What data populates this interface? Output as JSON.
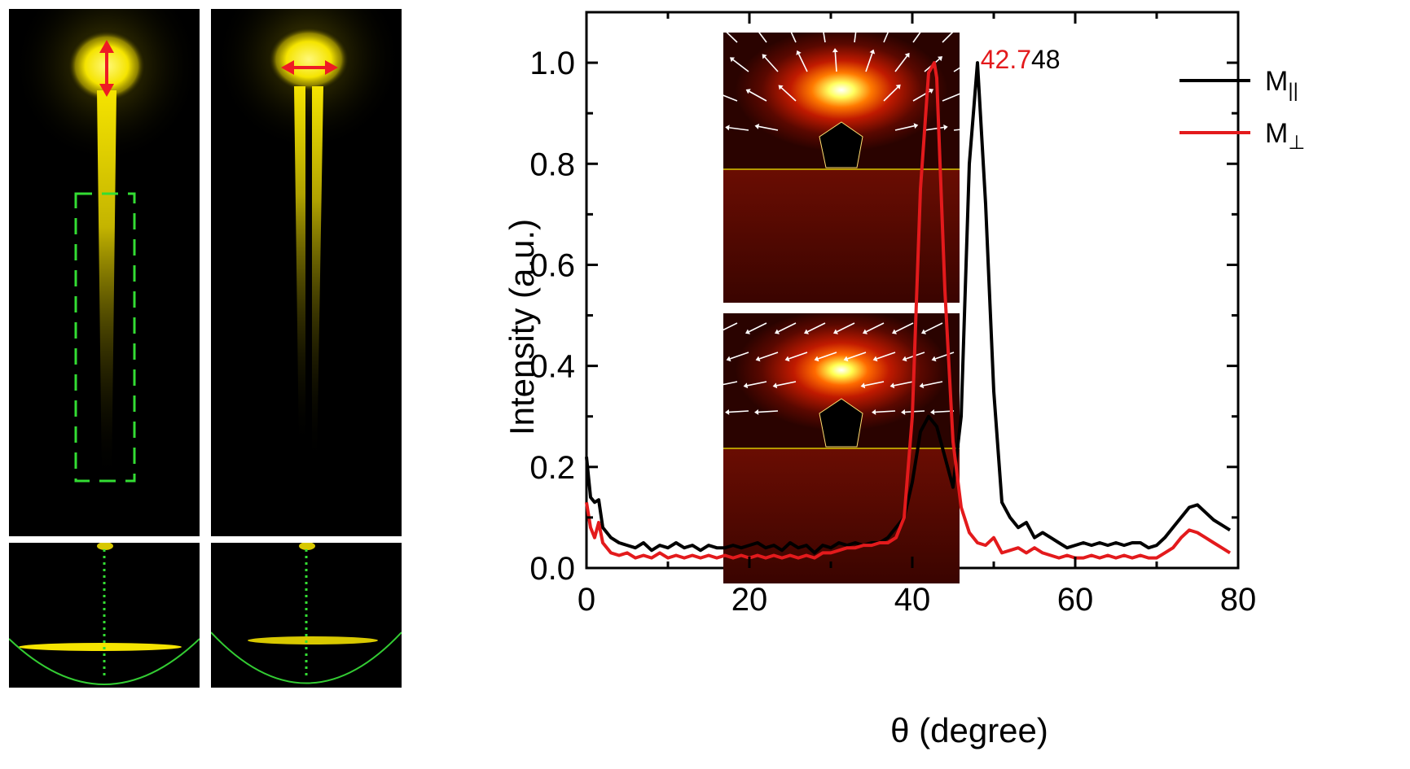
{
  "images": {
    "left_top": {
      "description": "",
      "polarization_arrow": "vertical"
    },
    "right_top": {
      "polarization_arrow": "horizontal"
    }
  },
  "colors": {
    "m_parallel": "#000000",
    "m_perp": "#e31a1c",
    "glow": "#f5e400",
    "box_dashed": "#33dd33",
    "arrow_red": "#ee1b24"
  },
  "chart_data": {
    "type": "line",
    "xlabel": "θ (degree)",
    "ylabel": "Intensity (a.u.)",
    "xlim": [
      0,
      80
    ],
    "ylim": [
      0,
      1.1
    ],
    "xticks": [
      "0",
      "20",
      "40",
      "60",
      "80"
    ],
    "yticks": [
      "0.0",
      "0.2",
      "0.4",
      "0.6",
      "0.8",
      "1.0"
    ],
    "legend_position": "top-right",
    "annotations": [
      {
        "text": "42.7",
        "color": "#e31a1c"
      },
      {
        "text": "48",
        "color": "#000000"
      }
    ],
    "series": [
      {
        "name_main": "M",
        "name_sub": "||",
        "color": "#000000",
        "x": [
          0,
          0.5,
          1,
          1.5,
          2,
          3,
          4,
          5,
          6,
          7,
          8,
          9,
          10,
          11,
          12,
          13,
          14,
          15,
          16,
          17,
          18,
          19,
          20,
          21,
          22,
          23,
          24,
          25,
          26,
          27,
          28,
          29,
          30,
          31,
          32,
          33,
          34,
          35,
          36,
          37,
          38,
          39,
          40,
          41,
          42,
          43,
          44,
          45,
          46,
          47,
          48,
          49,
          50,
          51,
          52,
          53,
          54,
          55,
          56,
          57,
          58,
          59,
          60,
          61,
          62,
          63,
          64,
          65,
          66,
          67,
          68,
          69,
          70,
          71,
          72,
          73,
          74,
          75,
          76,
          77,
          78,
          79
        ],
        "y": [
          0.22,
          0.14,
          0.13,
          0.135,
          0.08,
          0.06,
          0.05,
          0.045,
          0.04,
          0.05,
          0.035,
          0.045,
          0.04,
          0.05,
          0.04,
          0.045,
          0.035,
          0.045,
          0.04,
          0.04,
          0.045,
          0.04,
          0.045,
          0.05,
          0.04,
          0.045,
          0.035,
          0.05,
          0.04,
          0.045,
          0.03,
          0.045,
          0.04,
          0.05,
          0.045,
          0.05,
          0.045,
          0.05,
          0.05,
          0.06,
          0.08,
          0.1,
          0.17,
          0.27,
          0.3,
          0.28,
          0.22,
          0.16,
          0.3,
          0.8,
          1.0,
          0.72,
          0.35,
          0.13,
          0.1,
          0.08,
          0.09,
          0.06,
          0.07,
          0.06,
          0.05,
          0.04,
          0.045,
          0.05,
          0.045,
          0.05,
          0.045,
          0.05,
          0.045,
          0.05,
          0.05,
          0.04,
          0.045,
          0.06,
          0.08,
          0.1,
          0.12,
          0.125,
          0.11,
          0.095,
          0.085,
          0.075
        ]
      },
      {
        "name_main": "M",
        "name_sub": "⊥",
        "color": "#e31a1c",
        "x": [
          0,
          0.5,
          1,
          1.5,
          2,
          3,
          4,
          5,
          6,
          7,
          8,
          9,
          10,
          11,
          12,
          13,
          14,
          15,
          16,
          17,
          18,
          19,
          20,
          21,
          22,
          23,
          24,
          25,
          26,
          27,
          28,
          29,
          30,
          31,
          32,
          33,
          34,
          35,
          36,
          37,
          38,
          39,
          40,
          41,
          42,
          42.7,
          43,
          44,
          45,
          46,
          47,
          48,
          49,
          50,
          51,
          52,
          53,
          54,
          55,
          56,
          57,
          58,
          59,
          60,
          61,
          62,
          63,
          64,
          65,
          66,
          67,
          68,
          69,
          70,
          71,
          72,
          73,
          74,
          75,
          76,
          77,
          78,
          79
        ],
        "y": [
          0.13,
          0.08,
          0.06,
          0.09,
          0.05,
          0.03,
          0.025,
          0.03,
          0.02,
          0.025,
          0.02,
          0.03,
          0.02,
          0.025,
          0.02,
          0.025,
          0.02,
          0.025,
          0.02,
          0.025,
          0.02,
          0.025,
          0.02,
          0.025,
          0.02,
          0.025,
          0.02,
          0.025,
          0.02,
          0.025,
          0.02,
          0.03,
          0.03,
          0.035,
          0.04,
          0.04,
          0.045,
          0.045,
          0.05,
          0.05,
          0.06,
          0.1,
          0.3,
          0.75,
          0.98,
          1.0,
          0.97,
          0.55,
          0.25,
          0.12,
          0.07,
          0.05,
          0.045,
          0.06,
          0.03,
          0.035,
          0.04,
          0.03,
          0.04,
          0.03,
          0.025,
          0.02,
          0.025,
          0.02,
          0.02,
          0.025,
          0.02,
          0.025,
          0.02,
          0.025,
          0.02,
          0.025,
          0.02,
          0.02,
          0.03,
          0.04,
          0.06,
          0.075,
          0.07,
          0.06,
          0.05,
          0.04,
          0.03
        ]
      }
    ]
  }
}
